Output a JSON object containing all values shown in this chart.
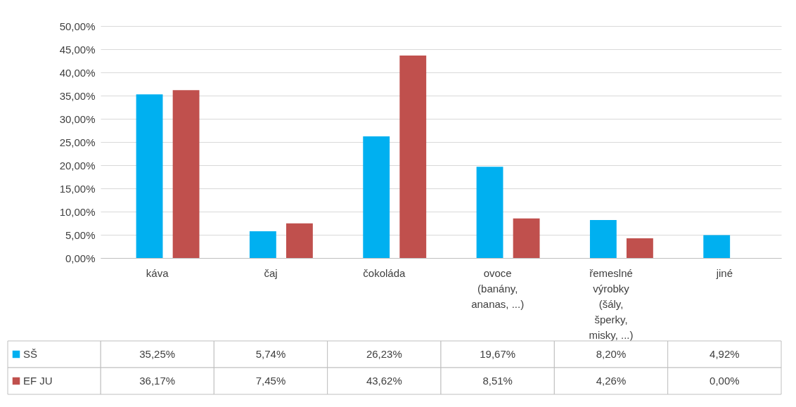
{
  "chart_data": {
    "type": "bar",
    "categories": [
      "káva",
      "čaj",
      "čokoláda",
      "ovoce (banány, ananas, ...)",
      "řemeslné výrobky (šály, šperky, misky, ...)",
      "jiné"
    ],
    "series": [
      {
        "name": "SŠ",
        "color": "#00b0f0",
        "values": [
          35.25,
          5.74,
          26.23,
          19.67,
          8.2,
          4.92
        ],
        "value_labels": [
          "35,25%",
          "5,74%",
          "26,23%",
          "19,67%",
          "8,20%",
          "4,92%"
        ]
      },
      {
        "name": "EF JU",
        "color": "#c0504d",
        "values": [
          36.17,
          7.45,
          43.62,
          8.51,
          4.26,
          0.0
        ],
        "value_labels": [
          "36,17%",
          "7,45%",
          "43,62%",
          "8,51%",
          "4,26%",
          "0,00%"
        ]
      }
    ],
    "ylim": [
      0,
      50
    ],
    "yticks": [
      {
        "value": 0,
        "label": "0,00%"
      },
      {
        "value": 5,
        "label": "5,00%"
      },
      {
        "value": 10,
        "label": "10,00%"
      },
      {
        "value": 15,
        "label": "15,00%"
      },
      {
        "value": 20,
        "label": "20,00%"
      },
      {
        "value": 25,
        "label": "25,00%"
      },
      {
        "value": 30,
        "label": "30,00%"
      },
      {
        "value": 35,
        "label": "35,00%"
      },
      {
        "value": 40,
        "label": "40,00%"
      },
      {
        "value": 45,
        "label": "45,00%"
      },
      {
        "value": 50,
        "label": "50,00%"
      }
    ],
    "grid": "y",
    "legend": "bottom"
  }
}
